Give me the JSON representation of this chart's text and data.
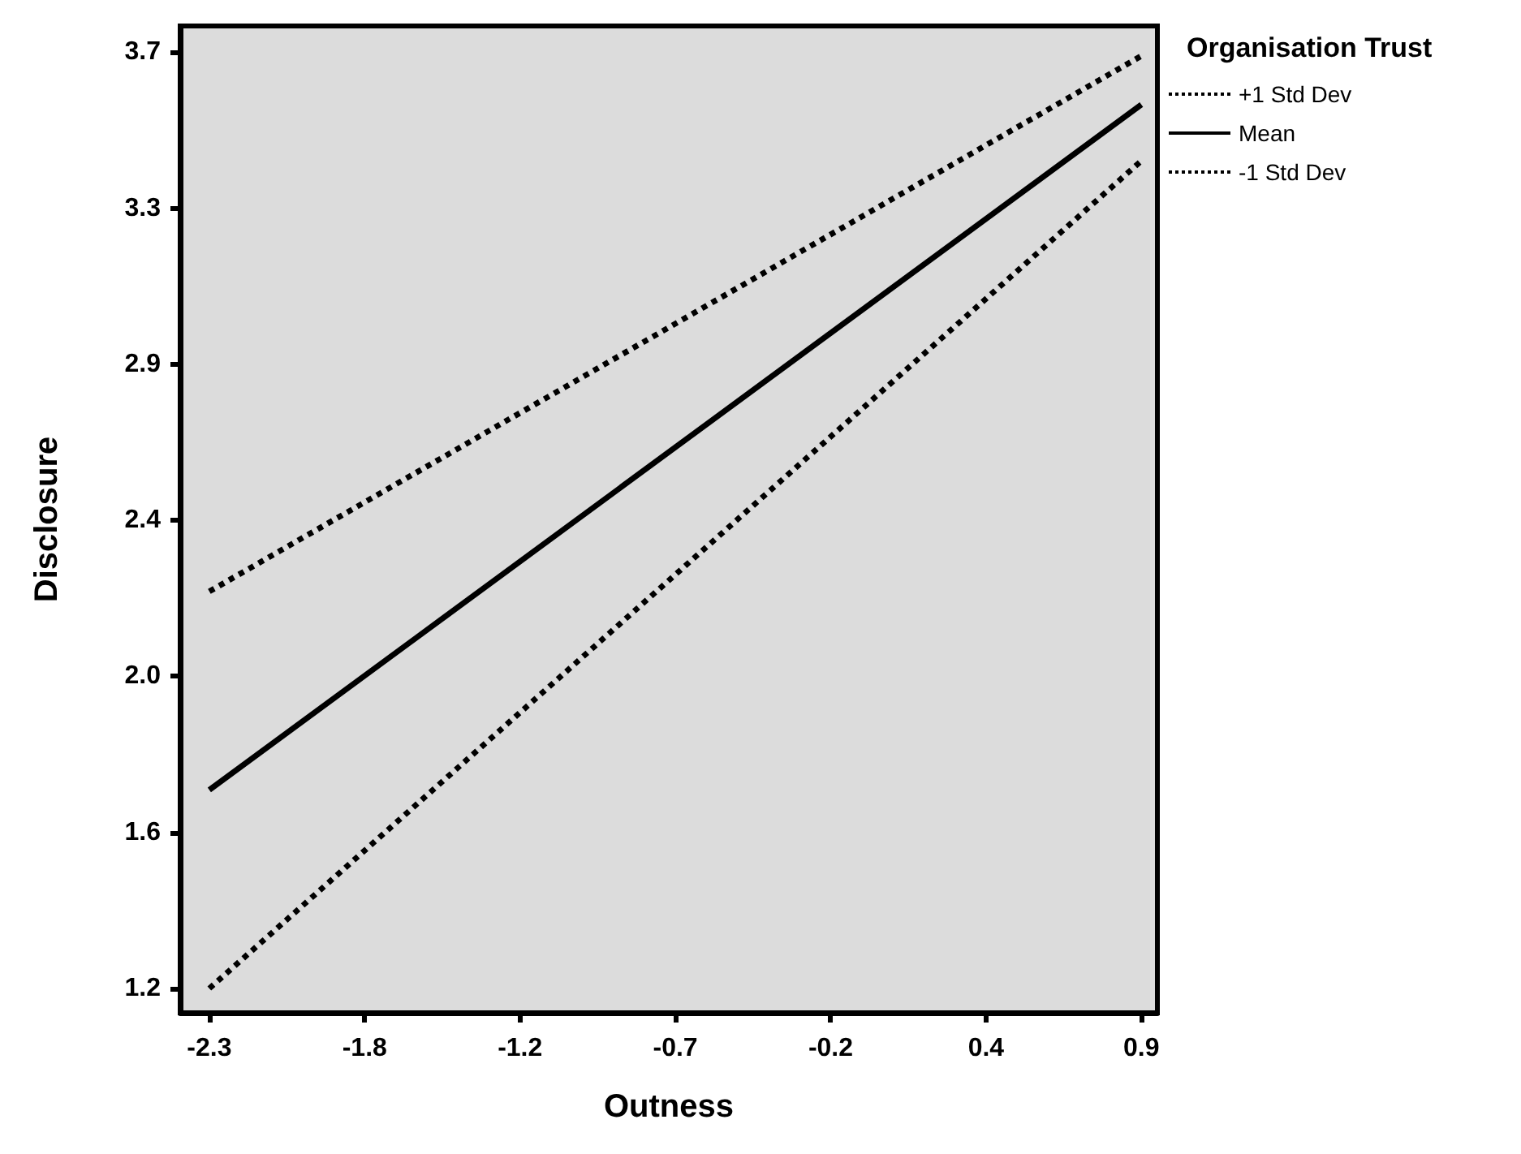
{
  "chart_data": {
    "type": "line",
    "xlabel": "Outness",
    "ylabel": "Disclosure",
    "legend_title": "Organisation Trust",
    "x": [
      -2.3,
      0.9
    ],
    "series": [
      {
        "name": "+1 Std Dev",
        "color": "#000000",
        "line_style": "dotted",
        "values": [
          2.26,
          3.69
        ]
      },
      {
        "name": "Mean",
        "color": "#000000",
        "line_style": "solid",
        "values": [
          1.73,
          3.56
        ]
      },
      {
        "name": "-1 Std Dev",
        "color": "#000000",
        "line_style": "dotted",
        "values": [
          1.2,
          3.41
        ]
      }
    ],
    "xlim": [
      -2.4,
      0.955
    ],
    "ylim": [
      1.135,
      3.77
    ],
    "xticks": [
      -2.3,
      {
        "value": -1.7667,
        "label": "-1.8"
      },
      {
        "value": -1.2333,
        "label": "-1.2"
      },
      -0.7,
      {
        "value": -0.1667,
        "label": "-0.2"
      },
      {
        "value": 0.3667,
        "label": "0.4"
      },
      0.9
    ],
    "yticks": [
      1.2,
      {
        "value": 1.6167,
        "label": "1.6"
      },
      {
        "value": 2.0333,
        "label": "2.0"
      },
      {
        "value": 2.45,
        "label": "2.4"
      },
      {
        "value": 2.8667,
        "label": "2.9"
      },
      {
        "value": 3.2833,
        "label": "3.3"
      },
      3.7
    ],
    "grid": false,
    "legend": "top right",
    "marker": "none"
  }
}
